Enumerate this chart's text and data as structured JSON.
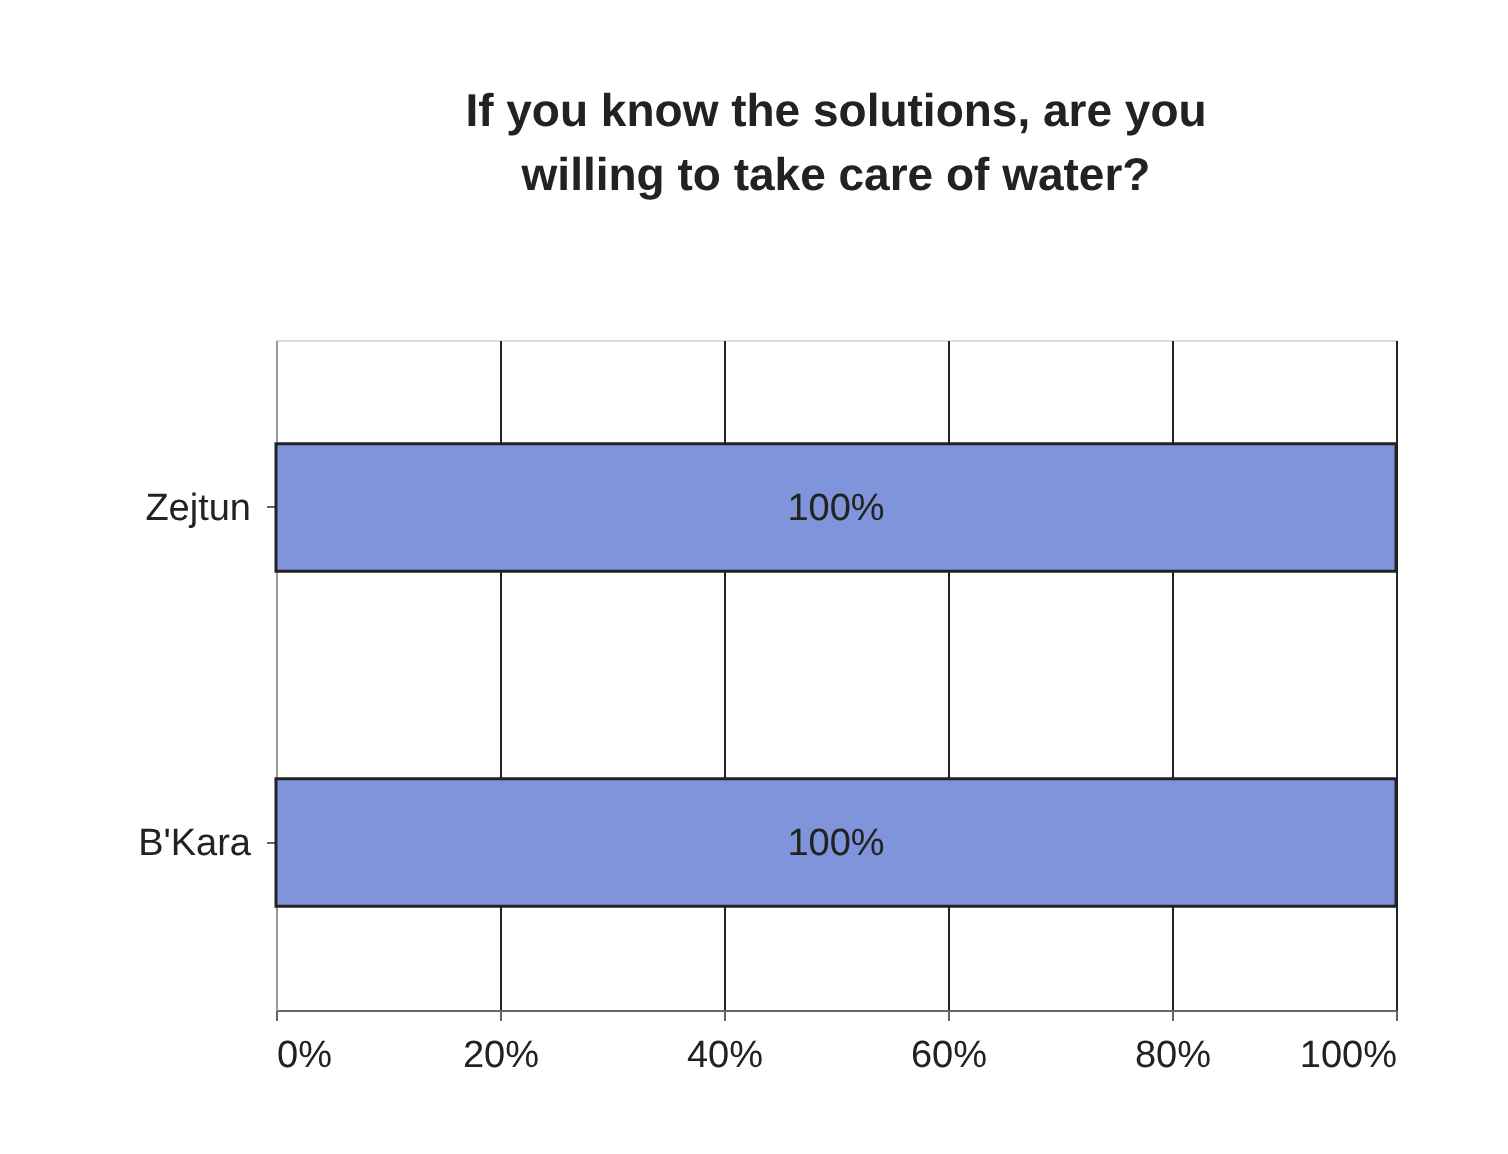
{
  "chart_data": {
    "type": "bar",
    "orientation": "horizontal",
    "title": "If you know the solutions, are you willing to take care of water?",
    "categories": [
      "Zejtun",
      "B'Kara"
    ],
    "values": [
      100,
      100
    ],
    "color": "#8094dc",
    "value_labels": [
      "100%",
      "100%"
    ],
    "xlim": [
      0,
      100
    ],
    "xticks": [
      {
        "value": 0,
        "label": "0%"
      },
      {
        "value": 20,
        "label": "20%"
      },
      {
        "value": 40,
        "label": "40%"
      },
      {
        "value": 60,
        "label": "60%"
      },
      {
        "value": 80,
        "label": "80%"
      },
      {
        "value": 100,
        "label": "100%"
      }
    ],
    "grid": "x"
  }
}
